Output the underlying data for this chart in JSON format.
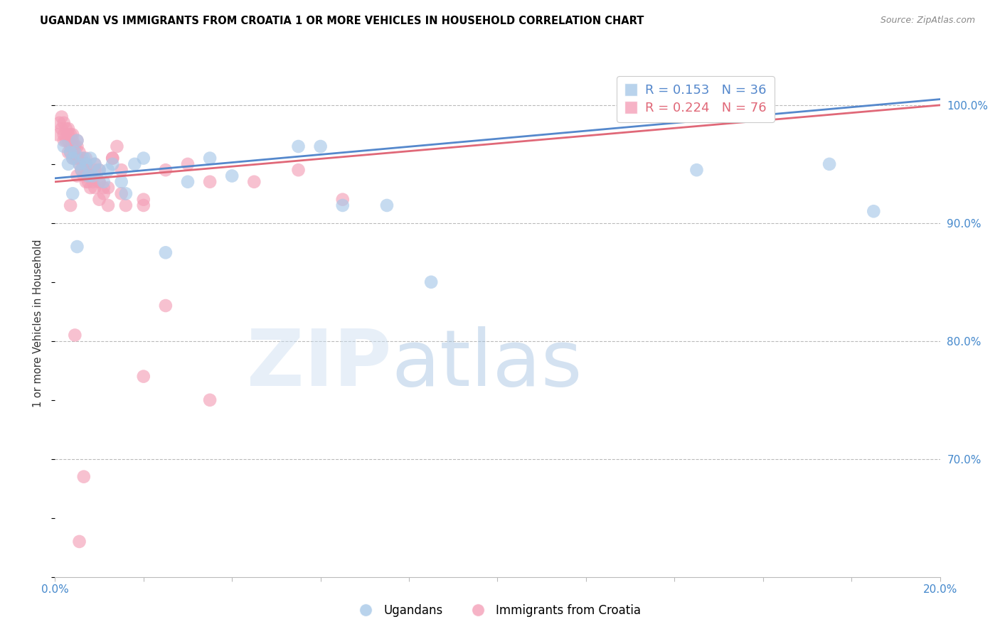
{
  "title": "UGANDAN VS IMMIGRANTS FROM CROATIA 1 OR MORE VEHICLES IN HOUSEHOLD CORRELATION CHART",
  "source": "Source: ZipAtlas.com",
  "ylabel": "1 or more Vehicles in Household",
  "xmin": 0.0,
  "xmax": 20.0,
  "ymin": 60.0,
  "ymax": 103.0,
  "legend_blue_R": "0.153",
  "legend_blue_N": "36",
  "legend_pink_R": "0.224",
  "legend_pink_N": "76",
  "legend_label_blue": "Ugandans",
  "legend_label_pink": "Immigrants from Croatia",
  "blue_color": "#A8C8E8",
  "pink_color": "#F4A0B8",
  "blue_line_color": "#5588CC",
  "pink_line_color": "#E06878",
  "blue_scatter_x": [
    0.2,
    0.3,
    0.35,
    0.4,
    0.45,
    0.5,
    0.55,
    0.6,
    0.65,
    0.7,
    0.75,
    0.8,
    0.85,
    0.9,
    1.0,
    1.1,
    1.2,
    1.3,
    1.5,
    1.6,
    1.8,
    2.0,
    2.5,
    3.0,
    3.5,
    4.0,
    5.5,
    6.0,
    6.5,
    7.5,
    8.5,
    14.5,
    17.5,
    18.5,
    0.4,
    0.5
  ],
  "blue_scatter_y": [
    96.5,
    95,
    96,
    95.5,
    96,
    97,
    95,
    94.5,
    95.5,
    95,
    94,
    95.5,
    94,
    95,
    94.5,
    93.5,
    94.5,
    95,
    93.5,
    92.5,
    95,
    95.5,
    87.5,
    93.5,
    95.5,
    94,
    96.5,
    96.5,
    91.5,
    91.5,
    85,
    94.5,
    95,
    91,
    92.5,
    88
  ],
  "pink_scatter_x": [
    0.05,
    0.1,
    0.15,
    0.15,
    0.2,
    0.2,
    0.25,
    0.25,
    0.3,
    0.3,
    0.3,
    0.35,
    0.35,
    0.35,
    0.4,
    0.4,
    0.4,
    0.45,
    0.45,
    0.5,
    0.5,
    0.5,
    0.55,
    0.55,
    0.55,
    0.6,
    0.6,
    0.65,
    0.65,
    0.7,
    0.7,
    0.7,
    0.75,
    0.75,
    0.8,
    0.8,
    0.85,
    0.9,
    0.9,
    1.0,
    1.0,
    1.0,
    1.1,
    1.2,
    1.3,
    1.5,
    1.6,
    2.0,
    2.0,
    2.5,
    3.0,
    3.5,
    4.5,
    5.5,
    6.5,
    0.2,
    0.3,
    0.4,
    0.5,
    0.6,
    0.7,
    0.8,
    0.9,
    1.0,
    1.1,
    1.2,
    1.3,
    1.4,
    1.5,
    2.0,
    2.5,
    3.5,
    0.35,
    0.45,
    0.55,
    0.65
  ],
  "pink_scatter_y": [
    97.5,
    98.5,
    99,
    98,
    98.5,
    97.5,
    98,
    97,
    97.5,
    98,
    97,
    96.5,
    97.5,
    96,
    97,
    96.5,
    97.5,
    96.5,
    95.5,
    97,
    96.5,
    95.5,
    95.5,
    96,
    95,
    95.5,
    94.5,
    95,
    94,
    95.5,
    94.5,
    95,
    94,
    93.5,
    94,
    93,
    93.5,
    93,
    95,
    93.5,
    94.5,
    92,
    93,
    93,
    95.5,
    92.5,
    91.5,
    77,
    91.5,
    83,
    95,
    93.5,
    93.5,
    94.5,
    92,
    97,
    96,
    95.5,
    94,
    94.5,
    93.5,
    94,
    94.5,
    93.5,
    92.5,
    91.5,
    95.5,
    96.5,
    94.5,
    92,
    94.5,
    75,
    91.5,
    80.5,
    63,
    68.5
  ],
  "blue_line_x0": 0.0,
  "blue_line_x1": 20.0,
  "blue_line_y0": 93.8,
  "blue_line_y1": 100.5,
  "pink_line_x0": 0.0,
  "pink_line_x1": 20.0,
  "pink_line_y0": 93.5,
  "pink_line_y1": 100.0,
  "ytick_positions": [
    70,
    80,
    90,
    100
  ],
  "ytick_labels": [
    "70.0%",
    "80.0%",
    "90.0%",
    "100.0%"
  ],
  "grid_color": "#BBBBBB",
  "axis_color": "#4488CC",
  "background_color": "#FFFFFF"
}
